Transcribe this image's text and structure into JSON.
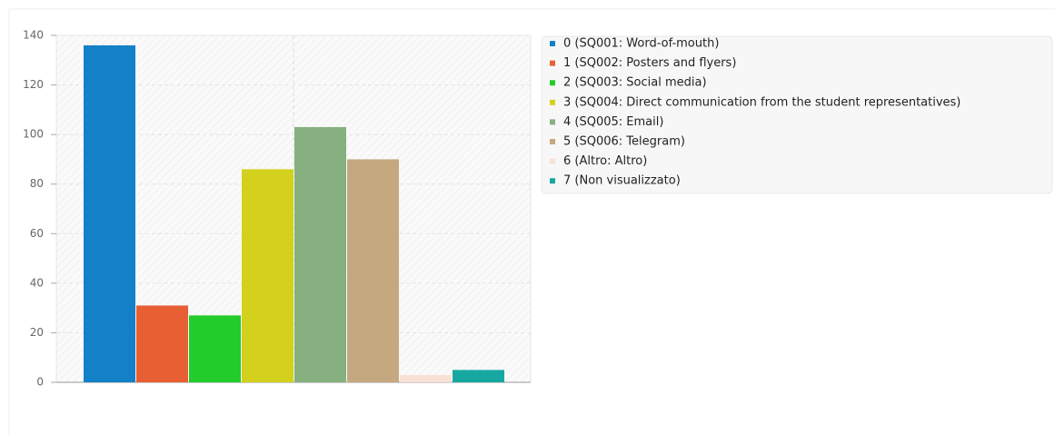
{
  "chart_data": {
    "type": "bar",
    "series": [
      {
        "name": "0 (SQ001: Word-of-mouth)",
        "color": "#1380c8",
        "values": [
          136
        ]
      },
      {
        "name": "1 (SQ002: Posters and flyers)",
        "color": "#e85f34",
        "values": [
          31
        ]
      },
      {
        "name": "2 (SQ003: Social media)",
        "color": "#22cc2a",
        "values": [
          27
        ]
      },
      {
        "name": "3 (SQ004: Direct communication from the student representatives)",
        "color": "#d3d11d",
        "values": [
          86
        ]
      },
      {
        "name": "4 (SQ005: Email)",
        "color": "#86b07f",
        "values": [
          103
        ]
      },
      {
        "name": "5 (SQ006: Telegram)",
        "color": "#c6a880",
        "values": [
          90
        ]
      },
      {
        "name": "6 (Altro: Altro)",
        "color": "#f9e0d4",
        "values": [
          3
        ]
      },
      {
        "name": "7 (Non visualizzato)",
        "color": "#16a8a0",
        "values": [
          5
        ]
      }
    ],
    "ylim": [
      0,
      140
    ],
    "yticks": [
      0,
      20,
      40,
      60,
      80,
      100,
      120,
      140
    ],
    "grid": true,
    "legend": "right"
  }
}
